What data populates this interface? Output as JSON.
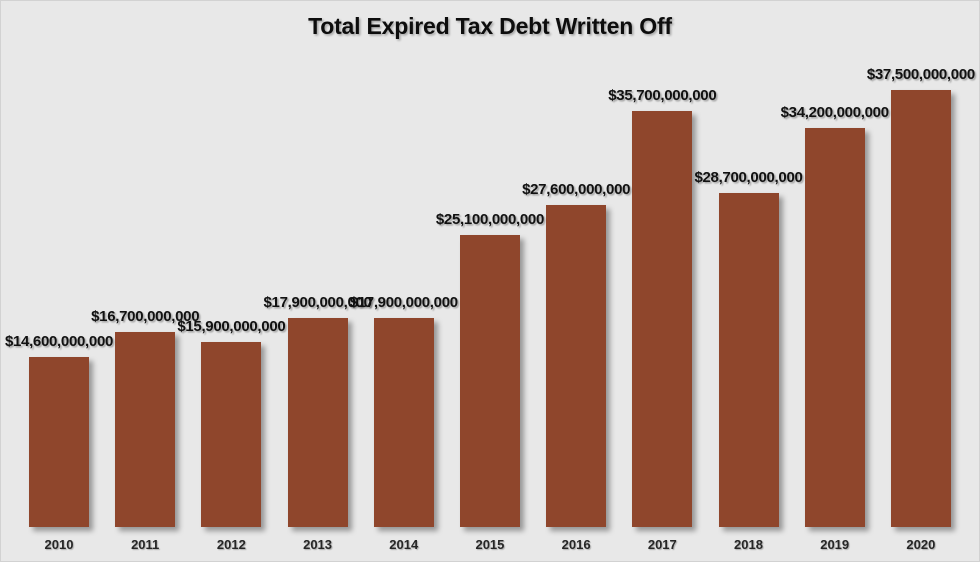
{
  "chart_data": {
    "type": "bar",
    "title": "Total Expired Tax Debt Written Off",
    "categories": [
      "2010",
      "2011",
      "2012",
      "2013",
      "2014",
      "2015",
      "2016",
      "2017",
      "2018",
      "2019",
      "2020"
    ],
    "values": [
      14600000000,
      16700000000,
      15900000000,
      17900000000,
      17900000000,
      25100000000,
      27600000000,
      35700000000,
      28700000000,
      34200000000,
      37500000000
    ],
    "value_labels": [
      "$14,600,000,000",
      "$16,700,000,000",
      "$15,900,000,000",
      "$17,900,000,000",
      "$17,900,000,000",
      "$25,100,000,000",
      "$27,600,000,000",
      "$35,700,000,000",
      "$28,700,000,000",
      "$34,200,000,000",
      "$37,500,000,000"
    ],
    "xlabel": "",
    "ylabel": "",
    "ylim": [
      0,
      37500000000
    ],
    "grid": false,
    "legend": false,
    "bar_color": "#8F462C",
    "background_color": "#E8E8E8",
    "label_color": "#111111"
  }
}
